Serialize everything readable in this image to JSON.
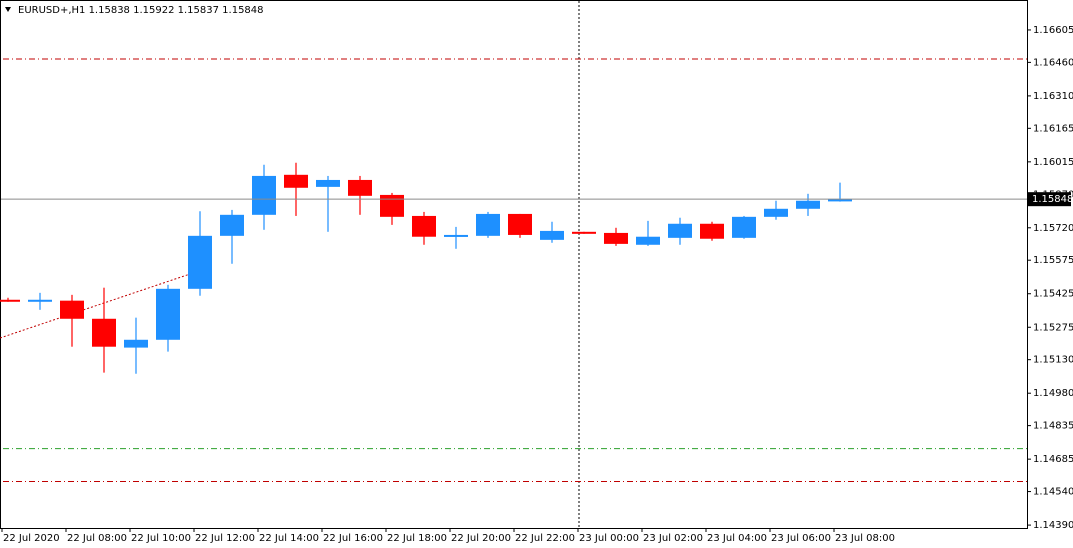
{
  "chart_data": {
    "type": "candlestick",
    "title": "EURUSD+,H1  1.15838 1.15922 1.15837 1.15848",
    "categories": [
      "22 Jul 2020",
      null,
      "22 Jul 08:00",
      null,
      "22 Jul 10:00",
      null,
      "22 Jul 12:00",
      null,
      "22 Jul 14:00",
      null,
      "22 Jul 16:00",
      null,
      "22 Jul 18:00",
      null,
      "22 Jul 20:00",
      null,
      "22 Jul 22:00",
      null,
      "23 Jul 00:00",
      null,
      "23 Jul 02:00",
      null,
      "23 Jul 04:00",
      null,
      "23 Jul 06:00",
      null,
      "23 Jul 08:00"
    ],
    "open": [
      1.15398,
      1.15389,
      1.15394,
      1.15313,
      1.15184,
      1.15219,
      1.15447,
      1.15684,
      1.15778,
      1.15957,
      1.15903,
      1.15934,
      1.15867,
      1.15773,
      1.1568,
      1.15684,
      1.15782,
      1.15666,
      1.15702,
      1.15697,
      1.15644,
      1.15675,
      1.15738,
      1.15675,
      1.15769,
      1.15805,
      1.15838
    ],
    "high": [
      1.15407,
      1.15429,
      1.1542,
      1.15452,
      1.15318,
      1.15465,
      1.15794,
      1.158,
      1.16002,
      1.16011,
      1.15952,
      1.15952,
      1.15876,
      1.15791,
      1.15724,
      1.15791,
      1.15782,
      1.15747,
      1.15702,
      1.1572,
      1.15751,
      1.15765,
      1.15747,
      1.15773,
      1.15841,
      1.15872,
      1.15922
    ],
    "low": [
      1.15389,
      1.15353,
      1.15188,
      1.15072,
      1.15067,
      1.15166,
      1.15416,
      1.15559,
      1.15711,
      1.15773,
      1.15702,
      1.15778,
      1.15733,
      1.15644,
      1.15626,
      1.15675,
      1.15675,
      1.15653,
      1.15693,
      1.15639,
      1.15639,
      1.15644,
      1.15662,
      1.15671,
      1.15756,
      1.15773,
      1.15837
    ],
    "close": [
      1.15394,
      1.15398,
      1.15313,
      1.15188,
      1.15219,
      1.15447,
      1.15684,
      1.15778,
      1.15952,
      1.15899,
      1.15934,
      1.15863,
      1.15769,
      1.1568,
      1.15688,
      1.15782,
      1.15688,
      1.15706,
      1.15693,
      1.15648,
      1.1568,
      1.15738,
      1.15671,
      1.15769,
      1.15805,
      1.15841,
      1.15848
    ],
    "up_color": "#1e90ff",
    "down_color": "#ff0000",
    "ylim": [
      1.14377,
      1.16739
    ],
    "yticks": [
      1.16605,
      {
        "value": 1.1646,
        "label": "1.16460"
      },
      {
        "value": 1.1631,
        "label": "1.16310"
      },
      1.16165,
      1.16015,
      {
        "value": 1.1587,
        "label": "1.15870"
      },
      {
        "value": 1.1572,
        "label": "1.15720"
      },
      1.15575,
      1.15425,
      1.15275,
      {
        "value": 1.1513,
        "label": "1.15130"
      },
      {
        "value": 1.1498,
        "label": "1.14980"
      },
      1.14835,
      1.14685,
      {
        "value": 1.1454,
        "label": "1.14540"
      },
      {
        "value": 1.1439,
        "label": "1.14390"
      }
    ],
    "current_price": 1.15848,
    "levels": [
      {
        "value": 1.16475,
        "color": "#c00000"
      },
      {
        "value": 1.14732,
        "color": "#2ca02c"
      },
      {
        "value": 1.14585,
        "color": "#c00000"
      }
    ]
  }
}
